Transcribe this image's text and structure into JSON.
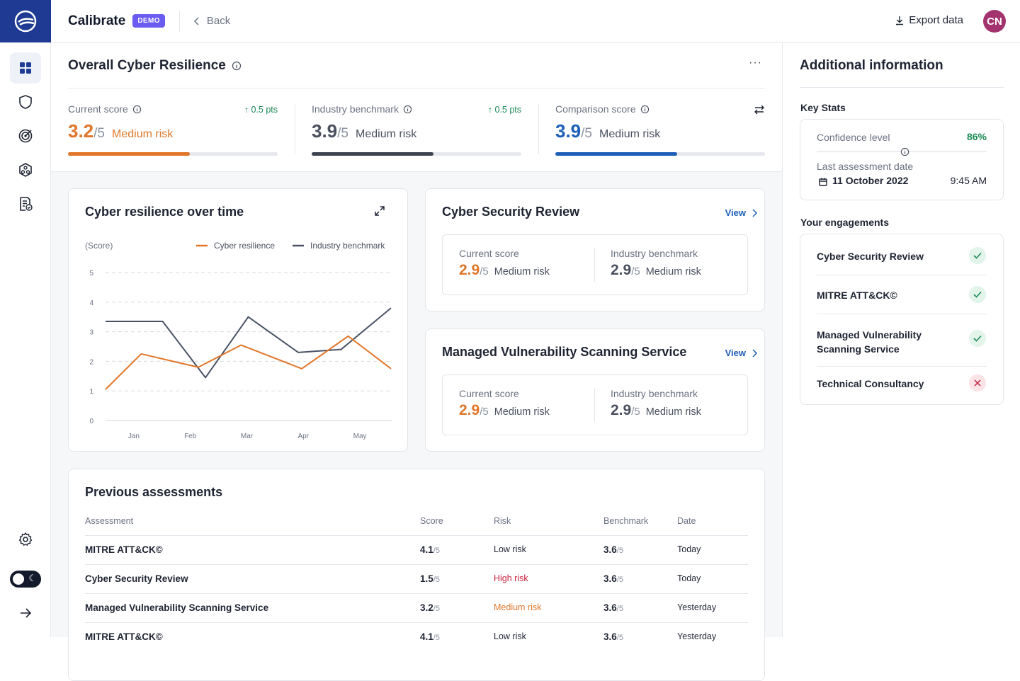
{
  "app": {
    "brand": "Calibrate",
    "badge": "DEMO",
    "back_label": "Back",
    "export_label": "Export data",
    "avatar_initials": "CN"
  },
  "overall": {
    "title": "Overall Cyber Resilience",
    "scores": [
      {
        "label": "Current score",
        "delta": "0.5 pts",
        "value": "3.2",
        "out_of": "/5",
        "risk": "Medium risk",
        "level": 0.58,
        "color": "#e0762a",
        "bar_color": "#e0762a"
      },
      {
        "label": "Industry benchmark",
        "delta": "0.5 pts",
        "value": "3.9",
        "out_of": "/5",
        "risk": "Medium risk",
        "level": 0.58,
        "color": "#4a5060",
        "bar_color": "#3d4350"
      },
      {
        "label": "Comparison score",
        "delta": "",
        "value": "3.9",
        "out_of": "/5",
        "risk": "Medium risk",
        "level": 0.58,
        "color": "#1d5fb8",
        "bar_color": "#1d5fb8"
      }
    ]
  },
  "chart": {
    "title": "Cyber resilience over time",
    "ylabel": "(Score)",
    "legend": [
      "Cyber resilience",
      "Industry benchmark"
    ]
  },
  "chart_data": {
    "type": "line",
    "x": [
      "Jan",
      "Feb",
      "Mar",
      "Apr",
      "May"
    ],
    "ylim": [
      0,
      5
    ],
    "yticks": [
      0,
      1,
      2,
      3,
      4,
      5
    ],
    "grid": true,
    "legend_position": "top-right",
    "series": [
      {
        "name": "Cyber resilience",
        "color": "#e0762a",
        "points": [
          [
            0.0,
            1.05
          ],
          [
            0.5,
            2.25
          ],
          [
            1.3,
            1.8
          ],
          [
            1.9,
            2.55
          ],
          [
            2.75,
            1.75
          ],
          [
            3.4,
            2.85
          ],
          [
            4.0,
            1.75
          ]
        ]
      },
      {
        "name": "Industry benchmark",
        "color": "#4a5366",
        "points": [
          [
            0.0,
            3.35
          ],
          [
            0.8,
            3.35
          ],
          [
            1.4,
            1.45
          ],
          [
            2.0,
            3.5
          ],
          [
            2.7,
            2.3
          ],
          [
            3.3,
            2.4
          ],
          [
            4.0,
            3.8
          ]
        ]
      }
    ]
  },
  "reviews": [
    {
      "title": "Cyber Security Review",
      "view": "View",
      "current_label": "Current score",
      "current_value": "2.9",
      "current_of": "/5",
      "current_risk": "Medium risk",
      "bench_label": "Industry benchmark",
      "bench_value": "2.9",
      "bench_of": "/5",
      "bench_risk": "Medium risk"
    },
    {
      "title": "Managed Vulnerability Scanning Service",
      "view": "View",
      "current_label": "Current score",
      "current_value": "2.9",
      "current_of": "/5",
      "current_risk": "Medium risk",
      "bench_label": "Industry benchmark",
      "bench_value": "2.9",
      "bench_of": "/5",
      "bench_risk": "Medium risk"
    }
  ],
  "assessments": {
    "title": "Previous assessments",
    "headers": [
      "Assessment",
      "Score",
      "Risk",
      "Benchmark",
      "Date"
    ],
    "rows": [
      {
        "name": "MITRE ATT&CK©",
        "score": "4.1",
        "of": "/5",
        "risk": "Low risk",
        "risk_color": "#1f2433",
        "bench": "3.6",
        "date": "Today"
      },
      {
        "name": "Cyber Security Review",
        "score": "1.5",
        "of": "/5",
        "risk": "High risk",
        "risk_color": "#c8213f",
        "bench": "3.6",
        "date": "Today"
      },
      {
        "name": "Managed Vulnerability Scanning Service",
        "score": "3.2",
        "of": "/5",
        "risk": "Medium risk",
        "risk_color": "#e0762a",
        "bench": "3.6",
        "date": "Yesterday"
      },
      {
        "name": "MITRE ATT&CK©",
        "score": "4.1",
        "of": "/5",
        "risk": "Low risk",
        "risk_color": "#1f2433",
        "bench": "3.6",
        "date": "Yesterday"
      }
    ]
  },
  "info": {
    "title": "Additional information",
    "key_stats_label": "Key Stats",
    "confidence_label": "Confidence level",
    "confidence_value": "86%",
    "last_date_label": "Last assessment date",
    "last_date": "11 October 2022",
    "last_time": "9:45 AM",
    "engagements_label": "Your engagements",
    "engagements": [
      {
        "name": "Cyber Security Review",
        "status": "complete"
      },
      {
        "name": "MITRE ATT&CK©",
        "status": "complete"
      },
      {
        "name": "Managed Vulnerability Scanning Service",
        "status": "complete"
      },
      {
        "name": "Technical Consultancy",
        "status": "incomplete"
      }
    ]
  }
}
